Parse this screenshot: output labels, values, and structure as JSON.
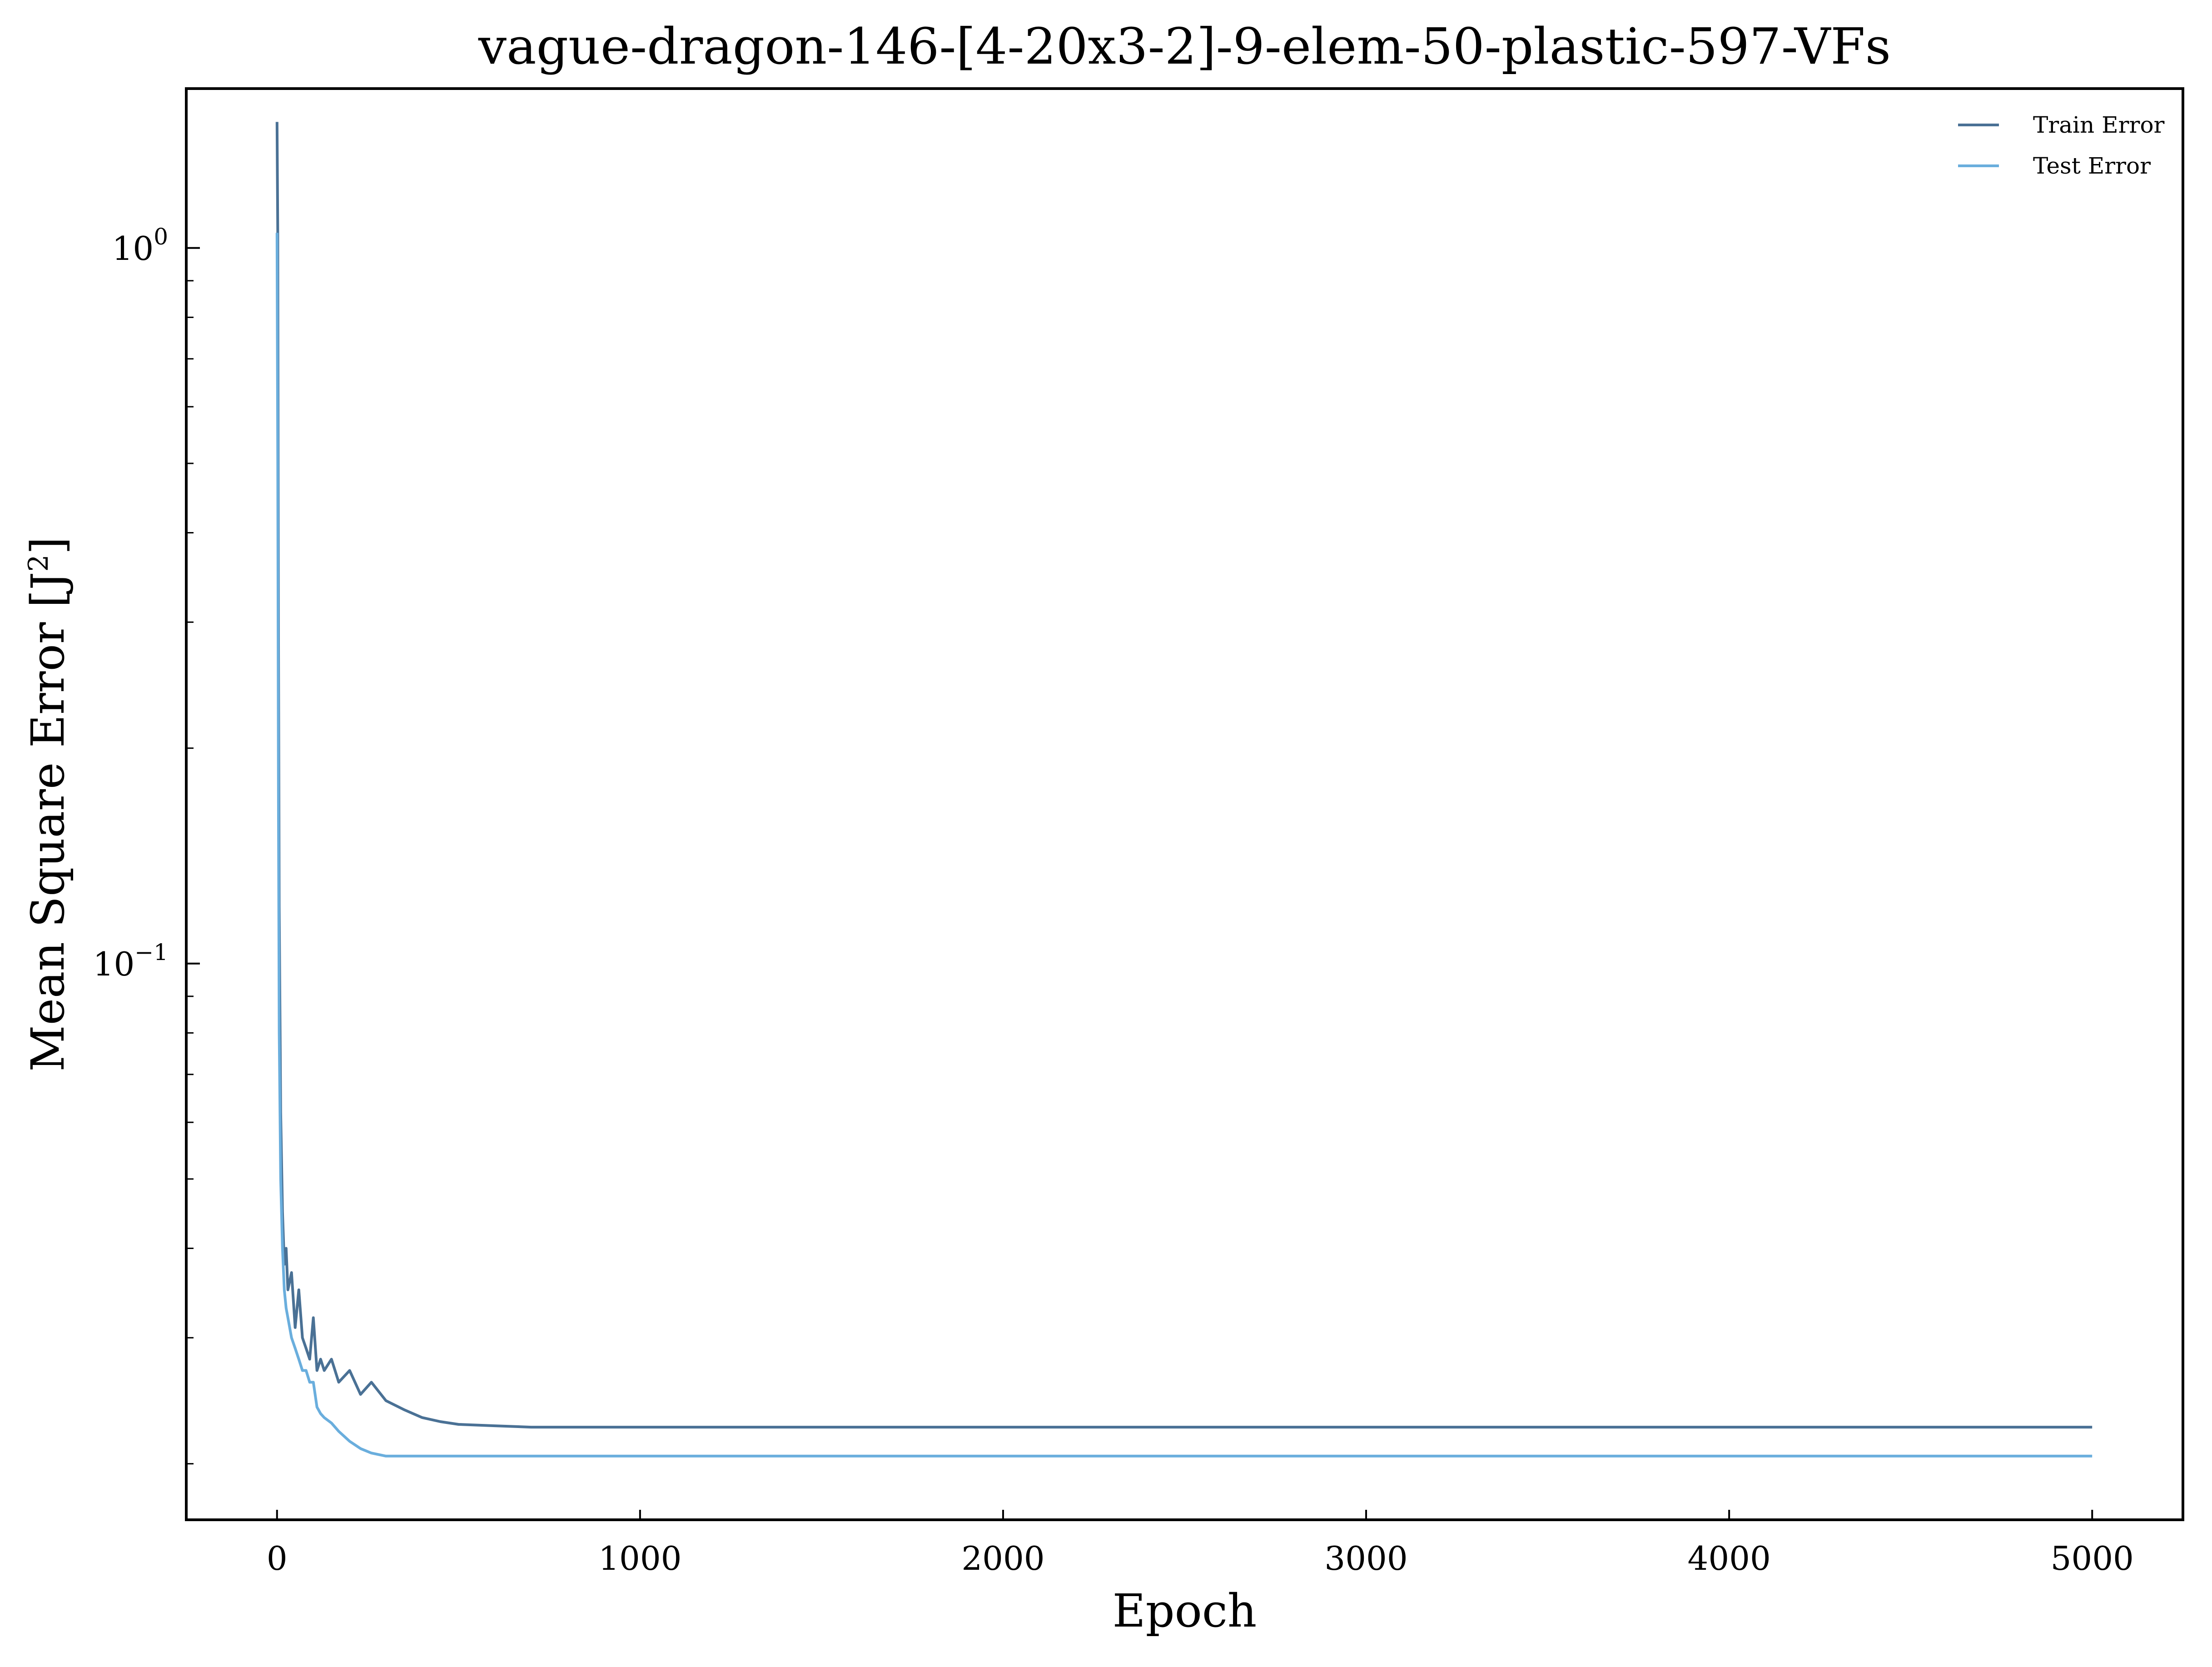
{
  "chart_data": {
    "type": "line",
    "title": "vague-dragon-146-[4-20x3-2]-9-elem-50-plastic-597-VFs",
    "xlabel": "Epoch",
    "ylabel": "Mean Square Error [J",
    "ylabel_sup": "2",
    "ylabel_end": "]",
    "yscale": "log",
    "xlim": [
      -250,
      5250
    ],
    "ylim": [
      0.0167,
      1.67
    ],
    "xticks": [
      0,
      1000,
      2000,
      3000,
      4000,
      5000
    ],
    "xtick_labels": [
      "0",
      "1000",
      "2000",
      "3000",
      "4000",
      "5000"
    ],
    "yticks": [
      1.0,
      0.1
    ],
    "ytick_labels": [
      {
        "base": "10",
        "exp": "0"
      },
      {
        "base": "10",
        "exp": "−1"
      }
    ],
    "grid": false,
    "legend_position": "top-right",
    "series": [
      {
        "name": "Train Error",
        "color": "#4a7195",
        "x": [
          0,
          2,
          4,
          6,
          10,
          15,
          20,
          25,
          30,
          40,
          50,
          60,
          70,
          80,
          90,
          100,
          110,
          120,
          130,
          150,
          170,
          200,
          230,
          260,
          300,
          350,
          400,
          450,
          500,
          600,
          700,
          800,
          1000,
          1500,
          2000,
          3000,
          4000,
          5000
        ],
        "y": [
          1.5,
          1.05,
          0.28,
          0.12,
          0.062,
          0.045,
          0.038,
          0.04,
          0.035,
          0.037,
          0.031,
          0.035,
          0.03,
          0.029,
          0.028,
          0.032,
          0.027,
          0.028,
          0.027,
          0.028,
          0.026,
          0.027,
          0.025,
          0.026,
          0.0245,
          0.0238,
          0.0232,
          0.0229,
          0.0227,
          0.0226,
          0.0225,
          0.0225,
          0.0225,
          0.0225,
          0.0225,
          0.0225,
          0.0225,
          0.0225
        ]
      },
      {
        "name": "Test Error",
        "color": "#6aaedd",
        "x": [
          0,
          2,
          4,
          6,
          10,
          15,
          20,
          25,
          30,
          40,
          50,
          60,
          70,
          80,
          90,
          100,
          110,
          120,
          130,
          150,
          170,
          200,
          230,
          260,
          300,
          350,
          400,
          450,
          500,
          600,
          700,
          800,
          1000,
          1500,
          2000,
          3000,
          4000,
          5000
        ],
        "y": [
          1.05,
          0.5,
          0.16,
          0.08,
          0.05,
          0.04,
          0.035,
          0.033,
          0.032,
          0.03,
          0.029,
          0.028,
          0.027,
          0.027,
          0.026,
          0.026,
          0.024,
          0.0235,
          0.0232,
          0.0228,
          0.0222,
          0.0215,
          0.021,
          0.0207,
          0.0205,
          0.0205,
          0.0205,
          0.0205,
          0.0205,
          0.0205,
          0.0205,
          0.0205,
          0.0205,
          0.0205,
          0.0205,
          0.0205,
          0.0205,
          0.0205
        ]
      }
    ]
  }
}
